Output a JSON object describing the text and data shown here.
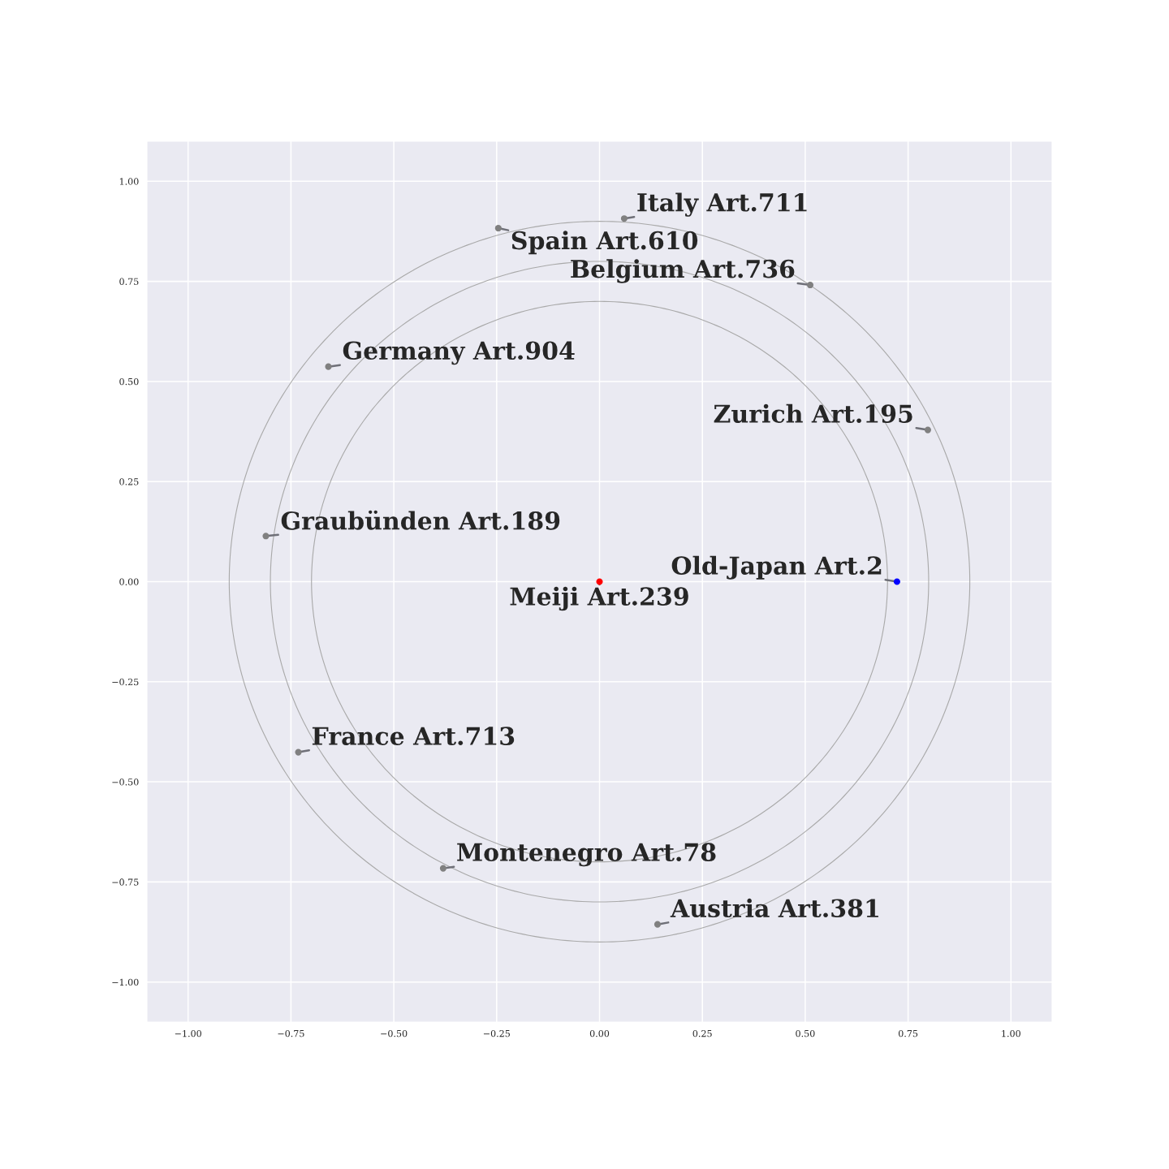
{
  "chart_data": {
    "type": "scatter",
    "xlim": [
      -1.1,
      1.1
    ],
    "ylim": [
      -1.1,
      1.1
    ],
    "xticks": [
      {
        "value": -1,
        "label": "−1.00"
      },
      {
        "value": -0.75,
        "label": "−0.75"
      },
      {
        "value": -0.5,
        "label": "−0.50"
      },
      {
        "value": -0.25,
        "label": "−0.25"
      },
      {
        "value": 0,
        "label": "0.00"
      },
      {
        "value": 0.25,
        "label": "0.25"
      },
      {
        "value": 0.5,
        "label": "0.50"
      },
      {
        "value": 0.75,
        "label": "0.75"
      },
      {
        "value": 1,
        "label": "1.00"
      }
    ],
    "yticks": [
      {
        "value": -1,
        "label": "−1.00"
      },
      {
        "value": -0.75,
        "label": "−0.75"
      },
      {
        "value": -0.5,
        "label": "−0.50"
      },
      {
        "value": -0.25,
        "label": "−0.25"
      },
      {
        "value": 0,
        "label": "0.00"
      },
      {
        "value": 0.25,
        "label": "0.25"
      },
      {
        "value": 0.5,
        "label": "0.50"
      },
      {
        "value": 0.75,
        "label": "0.75"
      },
      {
        "value": 1,
        "label": "1.00"
      }
    ],
    "grid": true,
    "series": [
      {
        "type": "scatter",
        "marker": "circle",
        "x": [
          0.06,
          -0.246,
          0.512,
          -0.659,
          0.798,
          -0.811,
          0.723,
          0,
          -0.732,
          -0.38,
          0.141
        ],
        "values": [
          0.907,
          0.883,
          0.741,
          0.537,
          0.379,
          0.114,
          0,
          0,
          -0.426,
          -0.716,
          -0.856
        ],
        "colors": [
          "#808080",
          "#808080",
          "#808080",
          "#808080",
          "#808080",
          "#808080",
          "#0000ff",
          "#ff0000",
          "#808080",
          "#808080",
          "#808080"
        ]
      }
    ],
    "annotations": [
      {
        "text": "Italy Art.711",
        "x": 0.06,
        "y": 0.907
      },
      {
        "text": "Spain Art.610",
        "x": -0.246,
        "y": 0.883
      },
      {
        "text": "Belgium Art.736",
        "x": 0.512,
        "y": 0.741
      },
      {
        "text": "Germany Art.904",
        "x": -0.659,
        "y": 0.537
      },
      {
        "text": "Zurich Art.195",
        "x": 0.798,
        "y": 0.379
      },
      {
        "text": "Graubünden Art.189",
        "x": -0.811,
        "y": 0.114
      },
      {
        "text": "Old-Japan Art.2",
        "x": 0.723,
        "y": 0
      },
      {
        "text": "Meiji Art.239",
        "x": 0,
        "y": 0
      },
      {
        "text": "France Art.713",
        "x": -0.732,
        "y": -0.426
      },
      {
        "text": "Montenegro Art.78",
        "x": -0.38,
        "y": -0.716
      },
      {
        "text": "Austria Art.381",
        "x": 0.141,
        "y": -0.856
      }
    ]
  }
}
